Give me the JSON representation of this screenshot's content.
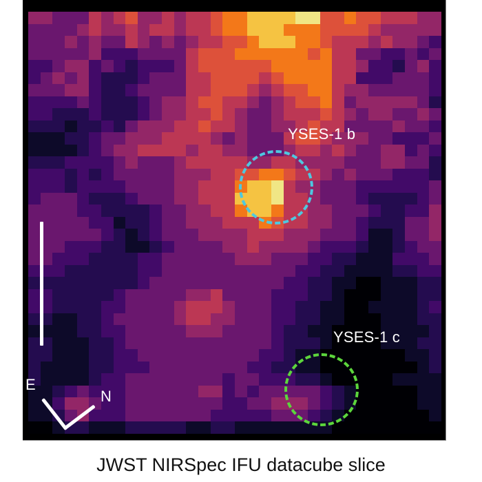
{
  "figure": {
    "caption": "JWST NIRSpec IFU datacube slice",
    "colormap": "inferno",
    "palette": [
      "#000004",
      "#0d0a29",
      "#240c4f",
      "#420a68",
      "#6a176e",
      "#932667",
      "#bc3754",
      "#dd513a",
      "#f37819",
      "#f5c342",
      "#f0e685"
    ]
  },
  "annotations": {
    "planet_b": {
      "label": "YSES-1 b",
      "ring_color": "#4ec8e0"
    },
    "planet_c": {
      "label": "YSES-1 c",
      "ring_color": "#5cd63c"
    },
    "compass": {
      "east_label": "E",
      "north_label": "N"
    },
    "scale_bar": {
      "color": "#ffffff"
    }
  },
  "image_grid": {
    "cols": 34,
    "rows": 35,
    "levels": [
      "5544465675565667889999997787766655",
      "4444565565665667889998887777655555",
      "4445454465454566778999887666565543",
      "4444453334444677788888878664433434",
      "3345534323334677777788888665332453",
      "3454532223444667777678888663334443",
      "4445532234444667776567788655444443",
      "3333432223455677665456778645555542",
      "3322232223455667654456667654554454",
      "2221223245556676654455676644445443",
      "1112234455566665454446776555443334",
      "1111234556666566554445665654455343",
      "2223333454445666665566555544455442",
      "3332323444445556677887665454443332",
      "3332333344445566689986554443333334",
      "3444322234445566699996654443222234",
      "4444332222344556689986655444322335",
      "4444433122344555666876655443222445",
      "4444443212344455556665554443112445",
      "4443332211234444556555543332112344",
      "4433322223344444455544433221113334",
      "3332222223344444444444332211112233",
      "2222222223444444444443322110011122",
      "3322222344444556444433322100011122",
      "3322223344445666544433221100111123",
      "2211223444445665544433221100011122",
      "1111223344444555444432211000011112",
      "2211122344444444444432221000011122",
      "2211122334444444444332110000000112",
      "2111122333444444443322110000000012",
      "2111123344444444344333221000001111",
      "1123433344444455343444443210000011",
      "1135543344444444334455543210000011",
      "1124533344444443333344432100000001",
      "0012211122222112211111111000000000"
    ]
  }
}
